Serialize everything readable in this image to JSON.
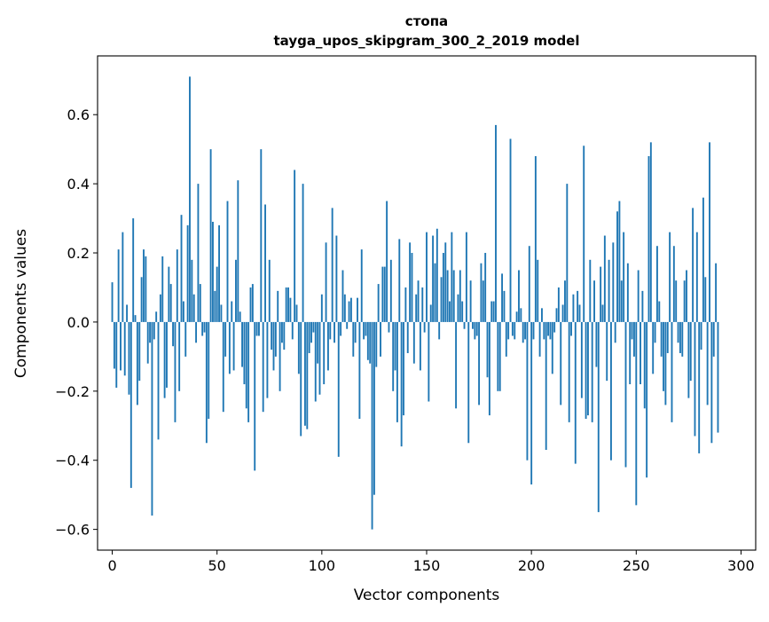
{
  "chart_data": {
    "type": "bar",
    "title": "стопа",
    "subtitle": "tayga_upos_skipgram_300_2_2019 model",
    "xlabel": "Vector components",
    "ylabel": "Components values",
    "xlim": [
      -7,
      307
    ],
    "ylim": [
      -0.66,
      0.77
    ],
    "xticks": [
      0,
      50,
      100,
      150,
      200,
      250,
      300
    ],
    "yticks": [
      -0.6,
      -0.4,
      -0.2,
      0.0,
      0.2,
      0.4,
      0.6
    ],
    "ytick_labels": [
      "−0.6",
      "−0.4",
      "−0.2",
      "0.0",
      "0.2",
      "0.4",
      "0.6"
    ],
    "xtick_labels": [
      "0",
      "50",
      "100",
      "150",
      "200",
      "250",
      "300"
    ],
    "bar_color": "#1f77b4",
    "grid": false,
    "values": [
      0.115,
      -0.135,
      -0.19,
      0.21,
      -0.14,
      0.26,
      -0.155,
      0.05,
      -0.21,
      -0.48,
      0.3,
      0.02,
      -0.24,
      -0.17,
      0.13,
      0.21,
      0.19,
      -0.12,
      -0.06,
      -0.56,
      -0.05,
      0.03,
      -0.34,
      0.08,
      0.19,
      -0.22,
      -0.19,
      0.16,
      0.11,
      -0.07,
      -0.29,
      0.21,
      -0.2,
      0.31,
      0.06,
      -0.1,
      0.28,
      0.71,
      0.18,
      0.08,
      -0.06,
      0.4,
      0.11,
      -0.04,
      -0.03,
      -0.35,
      -0.28,
      0.5,
      0.29,
      0.09,
      0.16,
      0.28,
      0.05,
      -0.26,
      -0.1,
      0.35,
      -0.15,
      0.06,
      -0.14,
      0.18,
      0.41,
      0.03,
      -0.13,
      -0.18,
      -0.25,
      -0.29,
      0.1,
      0.11,
      -0.43,
      -0.04,
      -0.04,
      0.5,
      -0.26,
      0.34,
      -0.22,
      0.18,
      -0.08,
      -0.14,
      -0.1,
      0.09,
      -0.2,
      -0.06,
      -0.08,
      0.1,
      0.1,
      0.07,
      -0.05,
      0.44,
      0.05,
      -0.15,
      -0.33,
      0.4,
      -0.3,
      -0.31,
      -0.09,
      -0.06,
      -0.03,
      -0.23,
      -0.12,
      -0.21,
      0.08,
      -0.18,
      0.23,
      -0.14,
      -0.05,
      0.33,
      -0.06,
      0.25,
      -0.39,
      -0.04,
      0.15,
      0.08,
      -0.02,
      0.06,
      0.07,
      -0.1,
      -0.06,
      0.07,
      -0.28,
      0.21,
      -0.05,
      -0.04,
      -0.11,
      -0.12,
      -0.6,
      -0.5,
      -0.13,
      0.11,
      -0.1,
      0.16,
      0.16,
      0.35,
      -0.03,
      0.18,
      -0.2,
      -0.14,
      -0.29,
      0.24,
      -0.36,
      -0.27,
      0.1,
      -0.09,
      0.23,
      0.2,
      -0.12,
      0.08,
      0.12,
      -0.14,
      0.1,
      -0.03,
      0.26,
      -0.23,
      0.05,
      0.25,
      0.17,
      0.27,
      -0.05,
      0.13,
      0.2,
      0.23,
      0.15,
      0.06,
      0.26,
      0.15,
      -0.25,
      0.08,
      0.15,
      0.06,
      -0.02,
      0.26,
      -0.35,
      0.12,
      -0.02,
      -0.05,
      -0.04,
      -0.24,
      0.17,
      0.12,
      0.2,
      -0.16,
      -0.27,
      0.06,
      0.06,
      0.57,
      -0.2,
      -0.2,
      0.14,
      0.09,
      -0.1,
      -0.05,
      0.53,
      -0.04,
      -0.05,
      0.03,
      0.15,
      0.04,
      -0.06,
      -0.05,
      -0.4,
      0.22,
      -0.47,
      -0.05,
      0.48,
      0.18,
      -0.1,
      0.04,
      -0.05,
      -0.37,
      -0.04,
      -0.05,
      -0.15,
      -0.03,
      0.04,
      0.1,
      -0.24,
      0.05,
      0.12,
      0.4,
      -0.29,
      -0.04,
      0.08,
      -0.41,
      0.09,
      0.05,
      -0.22,
      0.51,
      -0.28,
      -0.27,
      0.18,
      -0.29,
      0.12,
      -0.13,
      -0.55,
      0.16,
      0.05,
      0.25,
      -0.17,
      0.18,
      -0.4,
      0.23,
      -0.06,
      0.32,
      0.35,
      0.12,
      0.26,
      -0.42,
      0.17,
      -0.18,
      -0.05,
      -0.1,
      -0.53,
      0.15,
      -0.18,
      0.09,
      -0.25,
      -0.45,
      0.48,
      0.52,
      -0.15,
      -0.06,
      0.22,
      0.06,
      -0.1,
      -0.2,
      -0.24,
      -0.09,
      0.26,
      -0.29,
      0.22,
      0.12,
      -0.06,
      -0.09,
      -0.1,
      0.12,
      0.15,
      -0.22,
      -0.17,
      0.33,
      -0.33,
      0.26,
      -0.38,
      -0.08,
      0.36,
      0.13,
      -0.24,
      0.52,
      -0.35,
      -0.1,
      0.17,
      -0.32
    ]
  }
}
